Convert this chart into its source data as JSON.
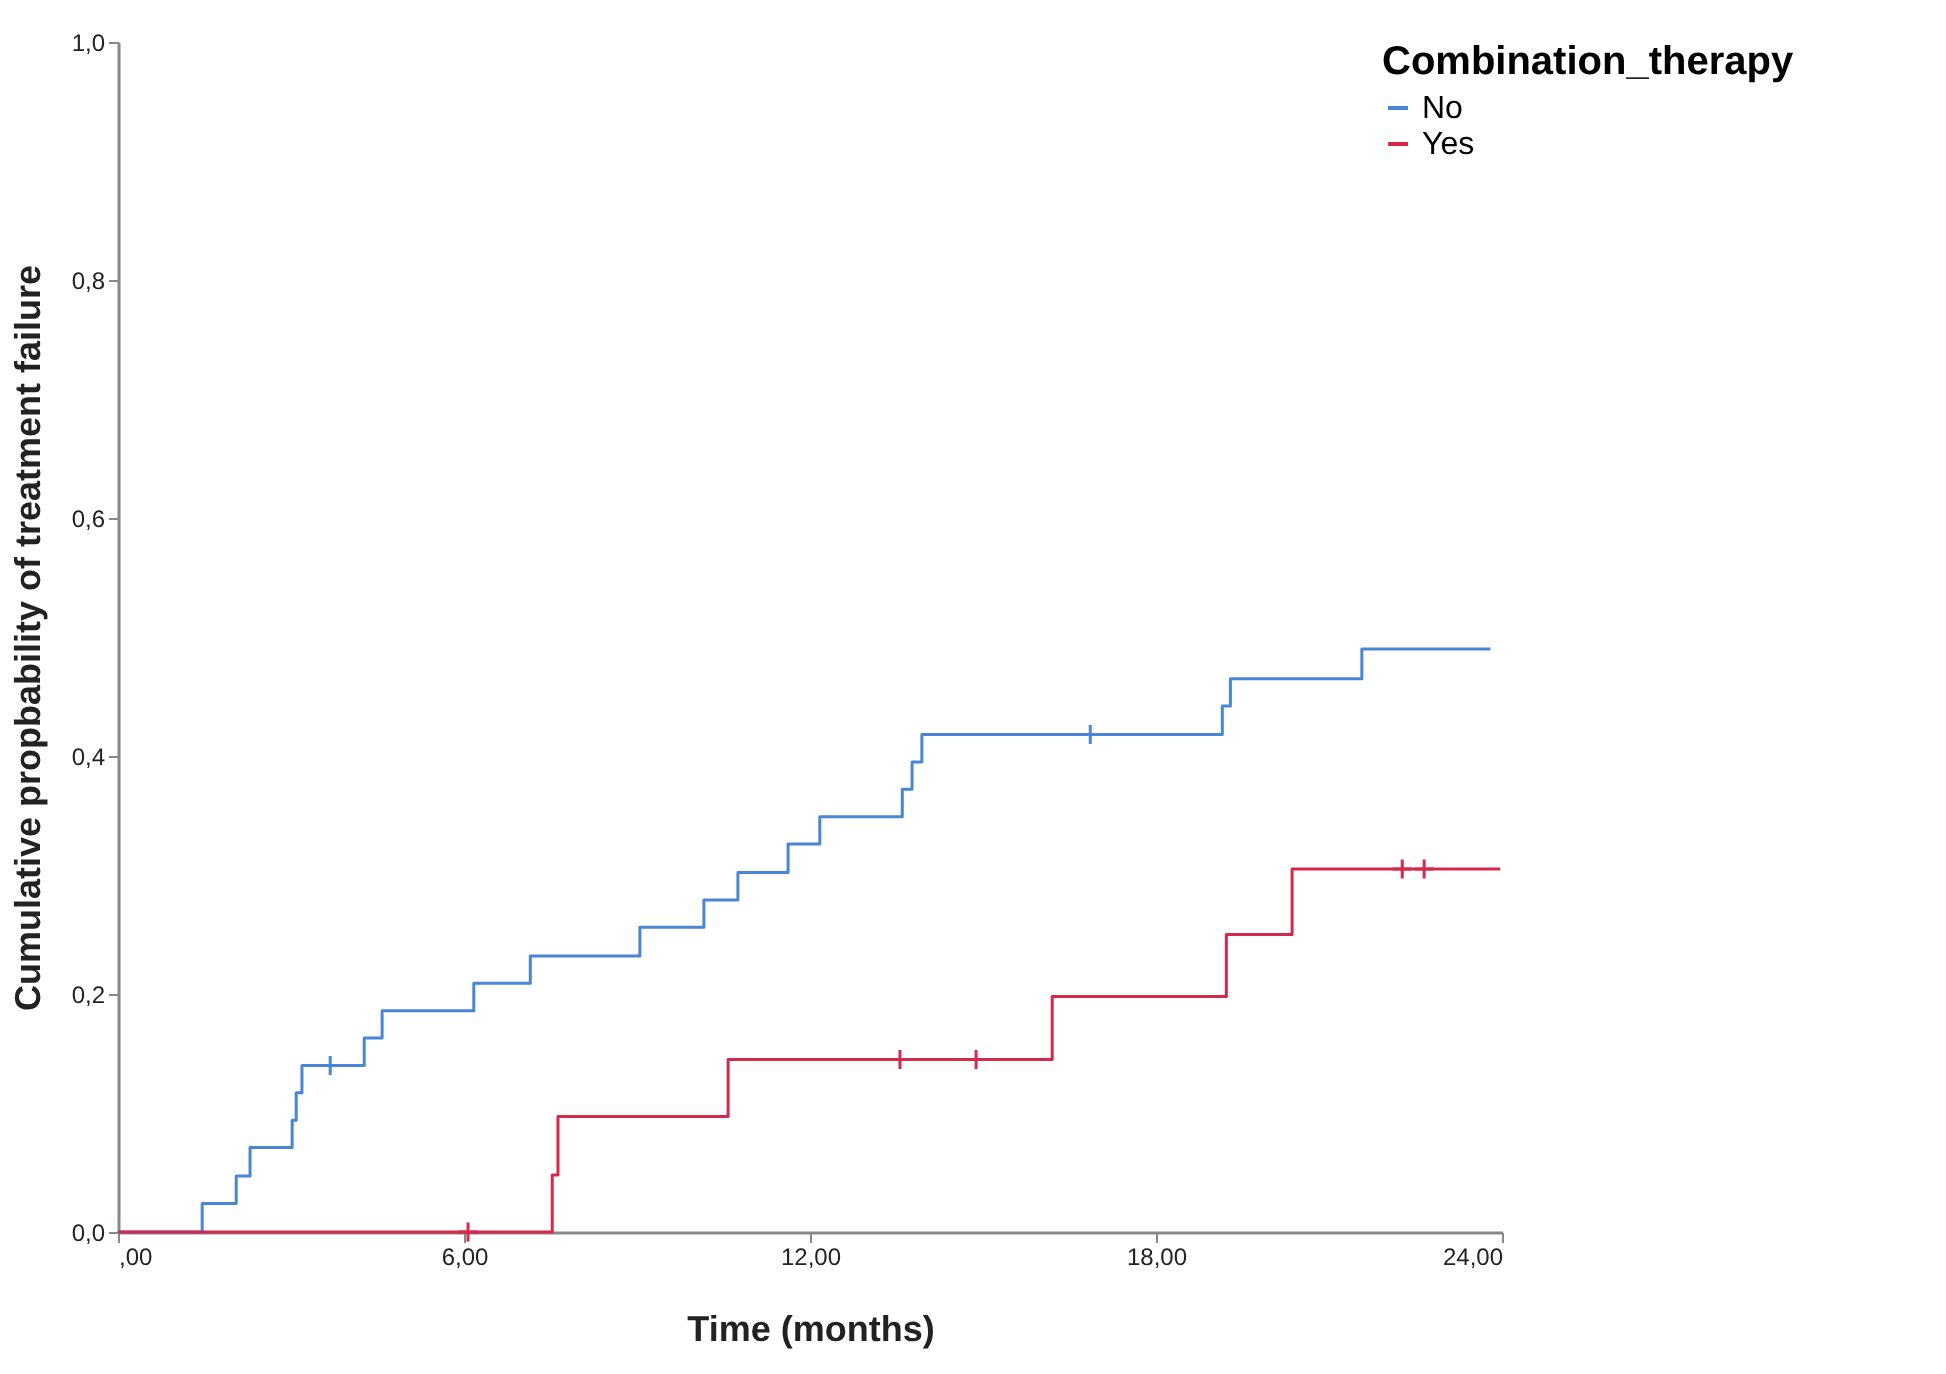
{
  "chart_data": {
    "type": "step",
    "xlabel": "Time (months)",
    "ylabel": "Cumulative propbability of treatment failure",
    "legend_title": "Combination_therapy",
    "series": [
      {
        "name": "No",
        "color": "#4a86d6",
        "x": [
          0,
          1.46,
          2.05,
          2.29,
          3.02,
          3.09,
          3.19,
          4.27,
          4.58,
          6.17,
          7.15,
          9.05,
          10.16,
          10.75,
          11.62,
          12.17,
          13.6,
          13.77,
          13.94,
          19.15,
          19.29,
          21.57,
          23.8
        ],
        "values": [
          0,
          0.024,
          0.047,
          0.071,
          0.094,
          0.117,
          0.14,
          0.163,
          0.186,
          0.209,
          0.232,
          0.256,
          0.279,
          0.302,
          0.326,
          0.349,
          0.372,
          0.395,
          0.418,
          0.442,
          0.465,
          0.49,
          0.49
        ]
      },
      {
        "name": "Yes",
        "color": "#d4294a",
        "x": [
          0,
          7.53,
          7.63,
          10.58,
          16.2,
          19.22,
          20.36,
          23.97
        ],
        "values": [
          0,
          0.048,
          0.097,
          0.145,
          0.198,
          0.25,
          0.305,
          0.305
        ]
      },
      {
        "color": "#4a86d6",
        "type": "scatter",
        "marker": "cross",
        "x": [
          3.68,
          16.86
        ],
        "values": [
          0.14,
          0.418
        ]
      },
      {
        "color": "#d4294a",
        "type": "scatter",
        "marker": "cross",
        "x": [
          6.07,
          13.56,
          14.88,
          22.27,
          22.65
        ],
        "values": [
          0,
          0.145,
          0.145,
          0.305,
          0.305
        ]
      }
    ],
    "xlim": [
      0,
      24
    ],
    "xticks": [
      {
        "value": 0,
        "label": ",00"
      },
      {
        "value": 6,
        "label": "6,00"
      },
      {
        "value": 12,
        "label": "12,00"
      },
      {
        "value": 18,
        "label": "18,00"
      },
      {
        "value": 24,
        "label": "24,00"
      }
    ],
    "ylim": [
      0,
      1
    ],
    "yticks": [
      {
        "value": 0,
        "label": "0,0"
      },
      {
        "value": 0.2,
        "label": "0,2"
      },
      {
        "value": 0.4,
        "label": "0,4"
      },
      {
        "value": 0.6,
        "label": "0,6"
      },
      {
        "value": 0.8,
        "label": "0,8"
      },
      {
        "value": 1,
        "label": "1,0"
      }
    ],
    "grid": false,
    "legend": "top right"
  }
}
